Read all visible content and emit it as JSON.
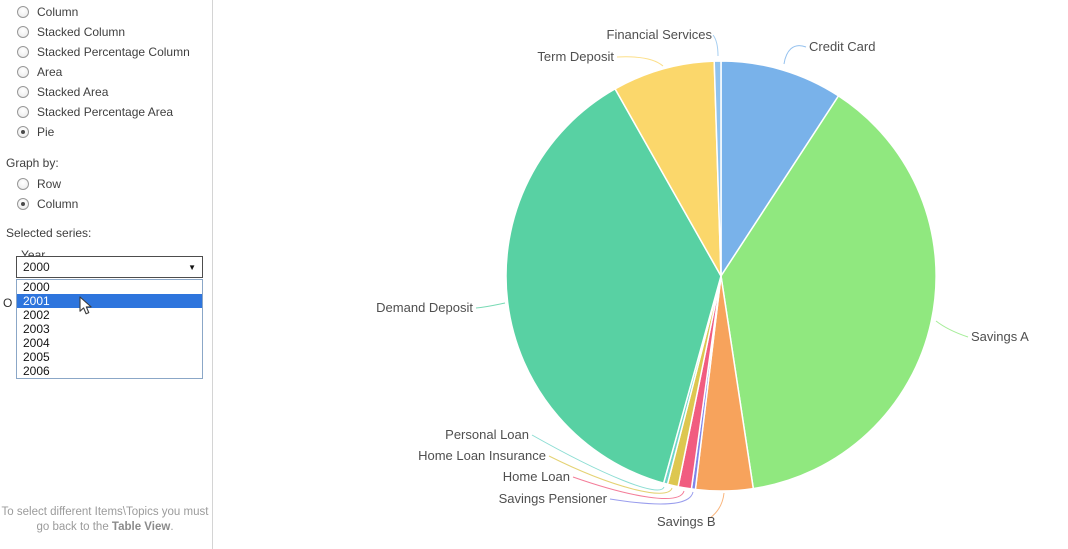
{
  "sidebar": {
    "chart_types": {
      "items": [
        {
          "label": "Column",
          "selected": false
        },
        {
          "label": "Stacked Column",
          "selected": false
        },
        {
          "label": "Stacked Percentage Column",
          "selected": false
        },
        {
          "label": "Area",
          "selected": false
        },
        {
          "label": "Stacked Area",
          "selected": false
        },
        {
          "label": "Stacked Percentage Area",
          "selected": false
        },
        {
          "label": "Pie",
          "selected": true
        }
      ]
    },
    "graph_by": {
      "label": "Graph by:",
      "options": [
        {
          "label": "Row",
          "selected": false
        },
        {
          "label": "Column",
          "selected": true
        }
      ]
    },
    "selected_series": {
      "label": "Selected series:",
      "field_label": "Year",
      "value": "2000",
      "caret": "▼",
      "options": [
        "2000",
        "2001",
        "2002",
        "2003",
        "2004",
        "2005",
        "2006"
      ],
      "highlighted_option": "2001"
    },
    "partial_hidden_label": "O",
    "footer": {
      "line1": "To select different Items\\Topics you must",
      "line2_prefix": "go back to the ",
      "line2_bold": "Table View",
      "line2_suffix": "."
    }
  },
  "chart_data": {
    "type": "pie",
    "unit": "%",
    "legend": "none",
    "label_color": "#4f4f4f",
    "slices": [
      {
        "label": "Credit Card",
        "value": 9.2,
        "color": "#79b2ea"
      },
      {
        "label": "Savings A",
        "value": 38.4,
        "color": "#90e87f"
      },
      {
        "label": "Savings B",
        "value": 4.3,
        "color": "#f7a35c"
      },
      {
        "label": "Savings Pensioner",
        "value": 0.3,
        "color": "#8085e9"
      },
      {
        "label": "Home Loan",
        "value": 1.0,
        "color": "#f15c80"
      },
      {
        "label": "Home Loan Insurance",
        "value": 0.8,
        "color": "#ddc750"
      },
      {
        "label": "Personal Loan",
        "value": 0.3,
        "color": "#6fd5c8"
      },
      {
        "label": "Demand Deposit",
        "value": 37.5,
        "color": "#58d1a3"
      },
      {
        "label": "Term Deposit",
        "value": 7.7,
        "color": "#fbd76b"
      },
      {
        "label": "Financial Services",
        "value": 0.5,
        "color": "#8fc2ee"
      }
    ]
  }
}
